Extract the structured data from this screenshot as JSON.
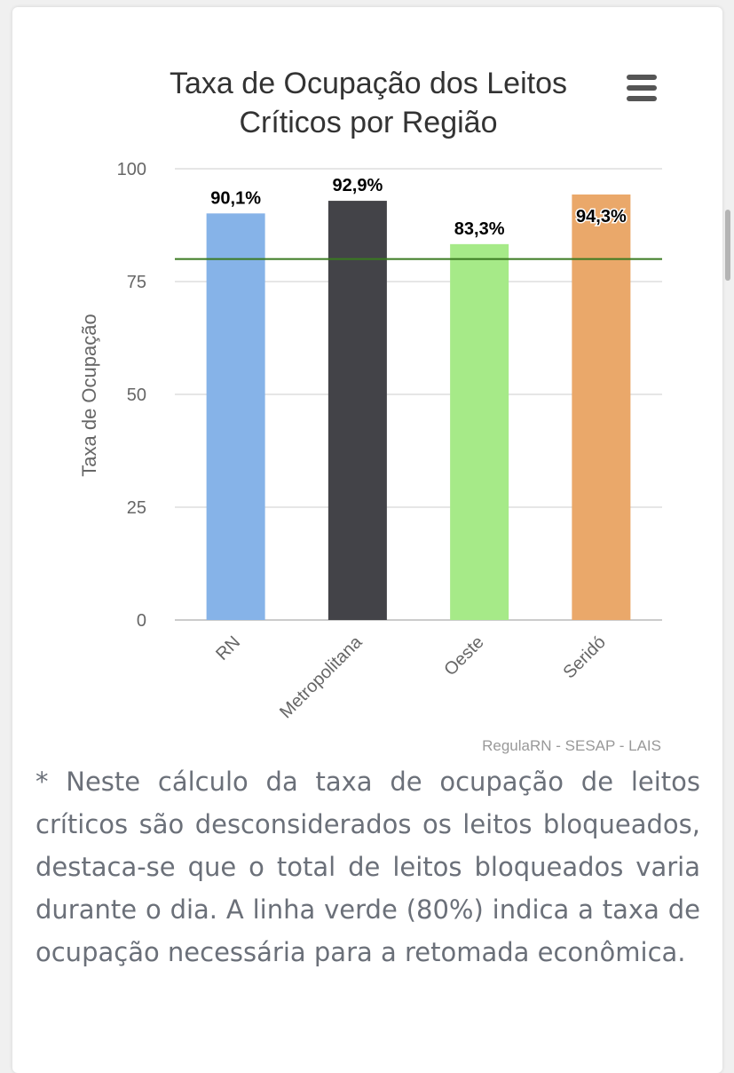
{
  "chart_data": {
    "type": "bar",
    "title": "Taxa de Ocupação dos Leitos Críticos por Região",
    "ylabel": "Taxa de Ocupação",
    "categories": [
      "RN",
      "Metropolitana",
      "Oeste",
      "Seridó"
    ],
    "values": [
      90.1,
      92.9,
      83.3,
      94.3
    ],
    "data_labels": [
      "90,1%",
      "92,9%",
      "83,3%",
      "94,3%"
    ],
    "colors": [
      "#86b3e8",
      "#434348",
      "#a6ea88",
      "#eaa86a"
    ],
    "ylim": [
      0,
      100
    ],
    "yticks": [
      "0",
      "25",
      "50",
      "75",
      "100"
    ],
    "reference_line": {
      "value": 80,
      "color": "#3a7a20"
    },
    "grid": true,
    "legend": "none"
  },
  "credits": "RegulaRN - SESAP - LAIS",
  "menu_icon": "hamburger-menu-icon",
  "footnote": "* Neste cálculo da taxa de ocupação de leitos críticos são desconsiderados os leitos bloqueados, destaca-se que o total de leitos bloqueados varia durante o dia. A linha verde (80%) indica a taxa de ocupação necessária para a retomada econômica."
}
